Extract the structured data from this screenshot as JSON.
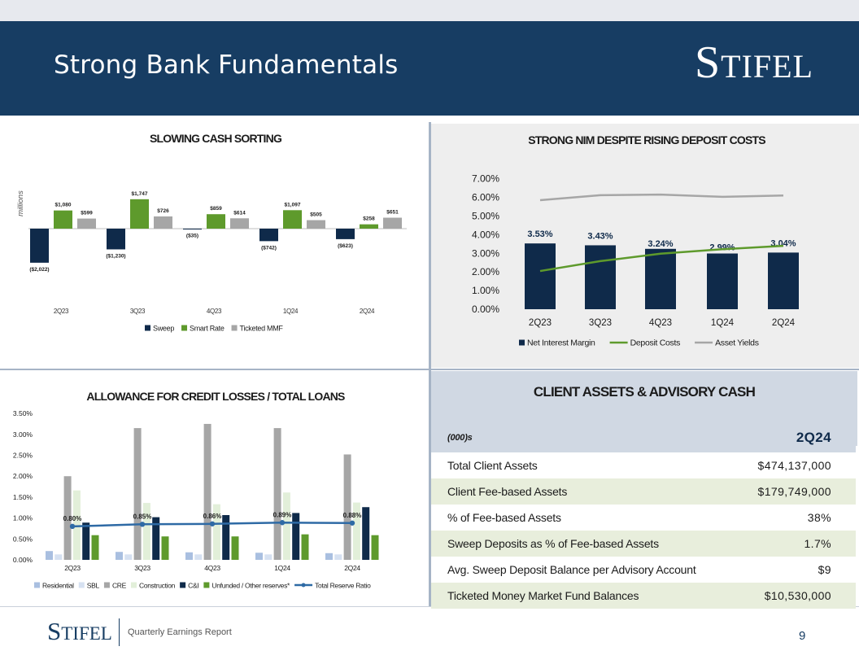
{
  "header": {
    "title": "Strong Bank Fundamentals",
    "brand_initial": "S",
    "brand_rest": "TIFEL"
  },
  "footer": {
    "brand_initial": "S",
    "brand_rest": "TIFEL",
    "subtitle": "Quarterly Earnings Report",
    "page_number": "9"
  },
  "colors": {
    "navy": "#173d63",
    "sweep": "#0f2a4a",
    "smart_rate": "#5e9a2c",
    "ticketed": "#a6a6a6",
    "asset_yield": "#a6a6a6",
    "residential": "#a9bfe0",
    "sbl": "#d6e1f1",
    "cre": "#a6a6a6",
    "construction": "#e2efd9",
    "unfunded": "#5e9a2c",
    "reserve_line": "#2e6aa5"
  },
  "chart_data": [
    {
      "id": "cash_sorting",
      "type": "bar",
      "title": "SLOWING CASH SORTING",
      "ylabel": "millions",
      "categories": [
        "2Q23",
        "3Q23",
        "4Q23",
        "1Q24",
        "2Q24"
      ],
      "series": [
        {
          "name": "Sweep",
          "values": [
            -2022,
            -1230,
            -35,
            -742,
            -623
          ],
          "labels": [
            "($2,022)",
            "($1,230)",
            "($35)",
            "($742)",
            "($623)"
          ]
        },
        {
          "name": "Smart Rate",
          "values": [
            1080,
            1747,
            859,
            1097,
            258
          ],
          "labels": [
            "$1,080",
            "$1,747",
            "$859",
            "$1,097",
            "$258"
          ]
        },
        {
          "name": "Ticketed MMF",
          "values": [
            599,
            726,
            614,
            505,
            651
          ],
          "labels": [
            "$599",
            "$726",
            "$614",
            "$505",
            "$651"
          ]
        }
      ],
      "ylim": [
        -2200,
        1800
      ],
      "legend": "bottom"
    },
    {
      "id": "nim",
      "type": "bar",
      "title": "STRONG NIM DESPITE RISING DEPOSIT COSTS",
      "categories": [
        "2Q23",
        "3Q23",
        "4Q23",
        "1Q24",
        "2Q24"
      ],
      "series": [
        {
          "name": "Net Interest Margin",
          "type": "bar",
          "values": [
            3.53,
            3.43,
            3.24,
            2.99,
            3.04
          ],
          "labels": [
            "3.53%",
            "3.43%",
            "3.24%",
            "2.99%",
            "3.04%"
          ]
        },
        {
          "name": "Deposit Costs",
          "type": "line",
          "values": [
            2.05,
            2.58,
            2.98,
            3.22,
            3.4
          ]
        },
        {
          "name": "Asset Yields",
          "type": "line",
          "values": [
            5.85,
            6.12,
            6.15,
            6.03,
            6.1
          ]
        }
      ],
      "yticks": [
        "7.00%",
        "6.00%",
        "5.00%",
        "4.00%",
        "3.00%",
        "2.00%",
        "1.00%",
        "0.00%"
      ],
      "ylim": [
        0,
        7
      ],
      "legend": "bottom"
    },
    {
      "id": "acl",
      "type": "bar",
      "title": "ALLOWANCE FOR CREDIT LOSSES /  TOTAL LOANS",
      "categories": [
        "2Q23",
        "3Q23",
        "4Q23",
        "1Q24",
        "2Q24"
      ],
      "series": [
        {
          "name": "Residential",
          "type": "bar",
          "values": [
            0.21,
            0.19,
            0.18,
            0.17,
            0.16
          ]
        },
        {
          "name": "SBL",
          "type": "bar",
          "values": [
            0.13,
            0.13,
            0.13,
            0.13,
            0.13
          ]
        },
        {
          "name": "CRE",
          "type": "bar",
          "values": [
            2.0,
            3.15,
            3.25,
            3.15,
            2.52
          ]
        },
        {
          "name": "Construction",
          "type": "bar",
          "values": [
            1.66,
            1.36,
            1.33,
            1.61,
            1.37
          ]
        },
        {
          "name": "C&I",
          "type": "bar",
          "values": [
            0.89,
            1.02,
            1.07,
            1.12,
            1.26
          ]
        },
        {
          "name": "Unfunded / Other reserves*",
          "type": "bar",
          "values": [
            0.59,
            0.56,
            0.56,
            0.61,
            0.59
          ]
        },
        {
          "name": "Total Reserve Ratio",
          "type": "line",
          "values": [
            0.8,
            0.85,
            0.86,
            0.89,
            0.88
          ],
          "labels": [
            "0.80%",
            "0.85%",
            "0.86%",
            "0.89%",
            "0.88%"
          ]
        }
      ],
      "yticks": [
        "3.50%",
        "3.00%",
        "2.50%",
        "2.00%",
        "1.50%",
        "1.00%",
        "0.50%",
        "0.00%"
      ],
      "ylim": [
        0,
        3.5
      ],
      "legend": "bottom"
    }
  ],
  "client_assets": {
    "title": "CLIENT ASSETS & ADVISORY CASH",
    "unit_label": "(000)s",
    "column_header": "2Q24",
    "rows": [
      {
        "label": "Total Client Assets",
        "value": "$474,137,000"
      },
      {
        "label": "Client Fee-based Assets",
        "value": "$179,749,000"
      },
      {
        "label": "% of Fee-based Assets",
        "value": "38%"
      },
      {
        "label": "Sweep Deposits as % of Fee-based Assets",
        "value": "1.7%"
      },
      {
        "label": "Avg. Sweep Deposit Balance per Advisory Account",
        "value": "$9"
      },
      {
        "label": "Ticketed Money Market Fund Balances",
        "value": "$10,530,000"
      }
    ]
  }
}
